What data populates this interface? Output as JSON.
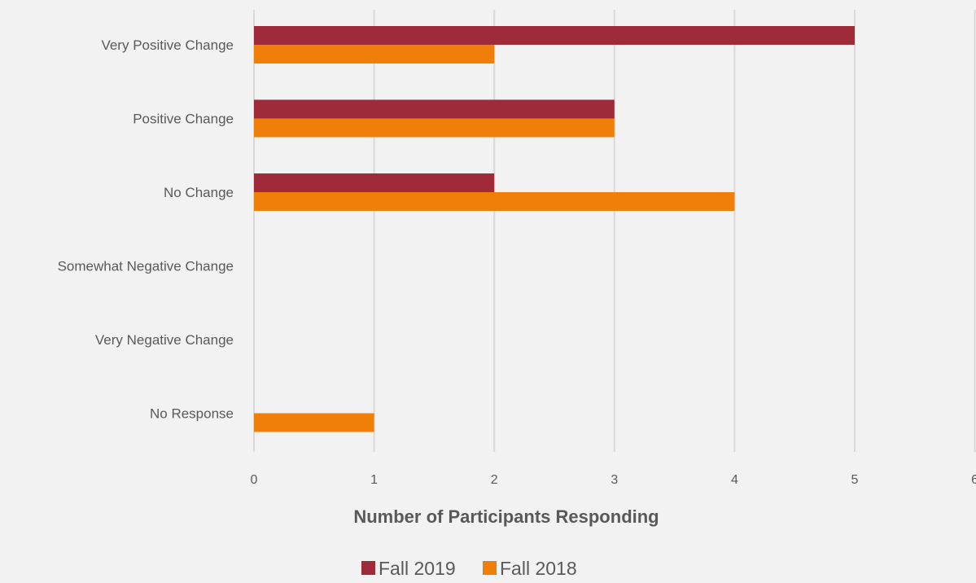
{
  "chart_data": {
    "type": "bar",
    "orientation": "horizontal",
    "categories": [
      "Very Positive Change",
      "Positive Change",
      "No Change",
      "Somewhat Negative Change",
      "Very Negative Change",
      "No Response"
    ],
    "series": [
      {
        "name": "Fall 2019",
        "color": "#9e2a3a",
        "values": [
          5,
          3,
          2,
          0,
          0,
          0
        ]
      },
      {
        "name": "Fall 2018",
        "color": "#f07f09",
        "values": [
          2,
          3,
          4,
          0,
          0,
          1
        ]
      }
    ],
    "xlabel": "Number of Participants Responding",
    "ylabel": "",
    "xlim": [
      0,
      6
    ],
    "xticks": [
      "0",
      "1",
      "2",
      "3",
      "4",
      "5",
      "6"
    ],
    "grid": "vertical",
    "legend_position": "bottom"
  }
}
